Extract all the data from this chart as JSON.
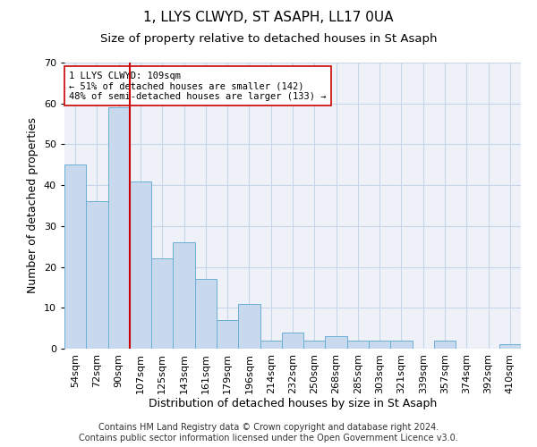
{
  "title": "1, LLYS CLWYD, ST ASAPH, LL17 0UA",
  "subtitle": "Size of property relative to detached houses in St Asaph",
  "xlabel": "Distribution of detached houses by size in St Asaph",
  "ylabel": "Number of detached properties",
  "categories": [
    "54sqm",
    "72sqm",
    "90sqm",
    "107sqm",
    "125sqm",
    "143sqm",
    "161sqm",
    "179sqm",
    "196sqm",
    "214sqm",
    "232sqm",
    "250sqm",
    "268sqm",
    "285sqm",
    "303sqm",
    "321sqm",
    "339sqm",
    "357sqm",
    "374sqm",
    "392sqm",
    "410sqm"
  ],
  "values": [
    45,
    36,
    59,
    41,
    22,
    26,
    17,
    7,
    11,
    2,
    4,
    2,
    3,
    2,
    2,
    2,
    0,
    2,
    0,
    0,
    1
  ],
  "bar_color": "#c8d9ee",
  "bar_edge_color": "#6aaed6",
  "marker_after_index": 2,
  "marker_color": "#cc0000",
  "annotation_text": "1 LLYS CLWYD: 109sqm\n← 51% of detached houses are smaller (142)\n48% of semi-detached houses are larger (133) →",
  "annotation_box_color": "white",
  "annotation_box_edge_color": "#cc0000",
  "ylim": [
    0,
    70
  ],
  "yticks": [
    0,
    10,
    20,
    30,
    40,
    50,
    60,
    70
  ],
  "grid_color": "#c8d4e8",
  "background_color": "#eef2f8",
  "footer": "Contains HM Land Registry data © Crown copyright and database right 2024.\nContains public sector information licensed under the Open Government Licence v3.0.",
  "title_fontsize": 11,
  "subtitle_fontsize": 9.5,
  "xlabel_fontsize": 9,
  "ylabel_fontsize": 9,
  "tick_fontsize": 8,
  "footer_fontsize": 7,
  "annotation_fontsize": 7.5
}
